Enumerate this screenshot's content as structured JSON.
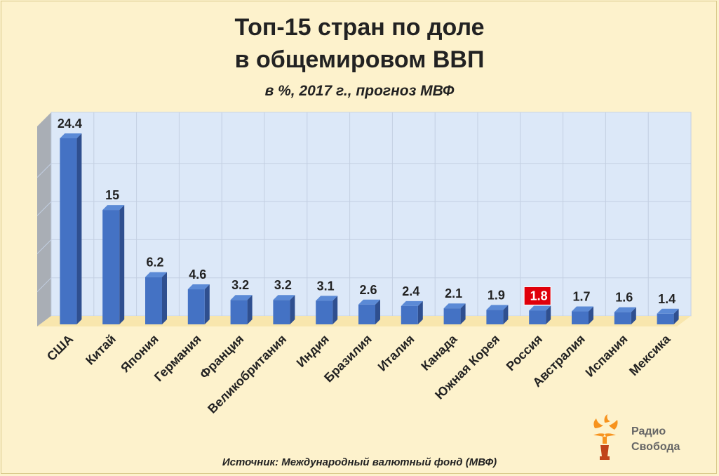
{
  "header": {
    "title_line1": "Топ-15 стран по доле",
    "title_line2": "в общемировом ВВП",
    "subtitle": "в %, 2017 г., прогноз МВФ"
  },
  "source": "Источник: Международный валютный фонд (МВФ)",
  "logo": {
    "line1": "Радио",
    "line2": "Свобода",
    "icon": "torch-icon"
  },
  "colors": {
    "bar": "#4472c4",
    "bar_side": "#2f4f8f",
    "highlight_label_bg": "#e0000b",
    "plot_bg": "#dce8f8",
    "floor": "#f8e6ad"
  },
  "chart_data": {
    "type": "bar",
    "title": "Топ-15 стран по доле в общемировом ВВП",
    "subtitle": "в %, 2017 г., прогноз МВФ",
    "categories": [
      "США",
      "Китай",
      "Япония",
      "Германия",
      "Франция",
      "Великобритания",
      "Индия",
      "Бразилия",
      "Италия",
      "Канада",
      "Южная Корея",
      "Россия",
      "Австралия",
      "Испания",
      "Мексика"
    ],
    "values": [
      24.4,
      15,
      6.2,
      4.6,
      3.2,
      3.2,
      3.1,
      2.6,
      2.4,
      2.1,
      1.9,
      1.8,
      1.7,
      1.6,
      1.4
    ],
    "data_labels": [
      "24.4",
      "15",
      "6.2",
      "4.6",
      "3.2",
      "3.2",
      "3.1",
      "2.6",
      "2.4",
      "2.1",
      "1.9",
      "1.8",
      "1.7",
      "1.6",
      "1.4"
    ],
    "highlight": "Россия",
    "ylim": [
      0,
      25
    ],
    "xlabel": "",
    "ylabel": "",
    "grid": true,
    "legend": "none"
  }
}
